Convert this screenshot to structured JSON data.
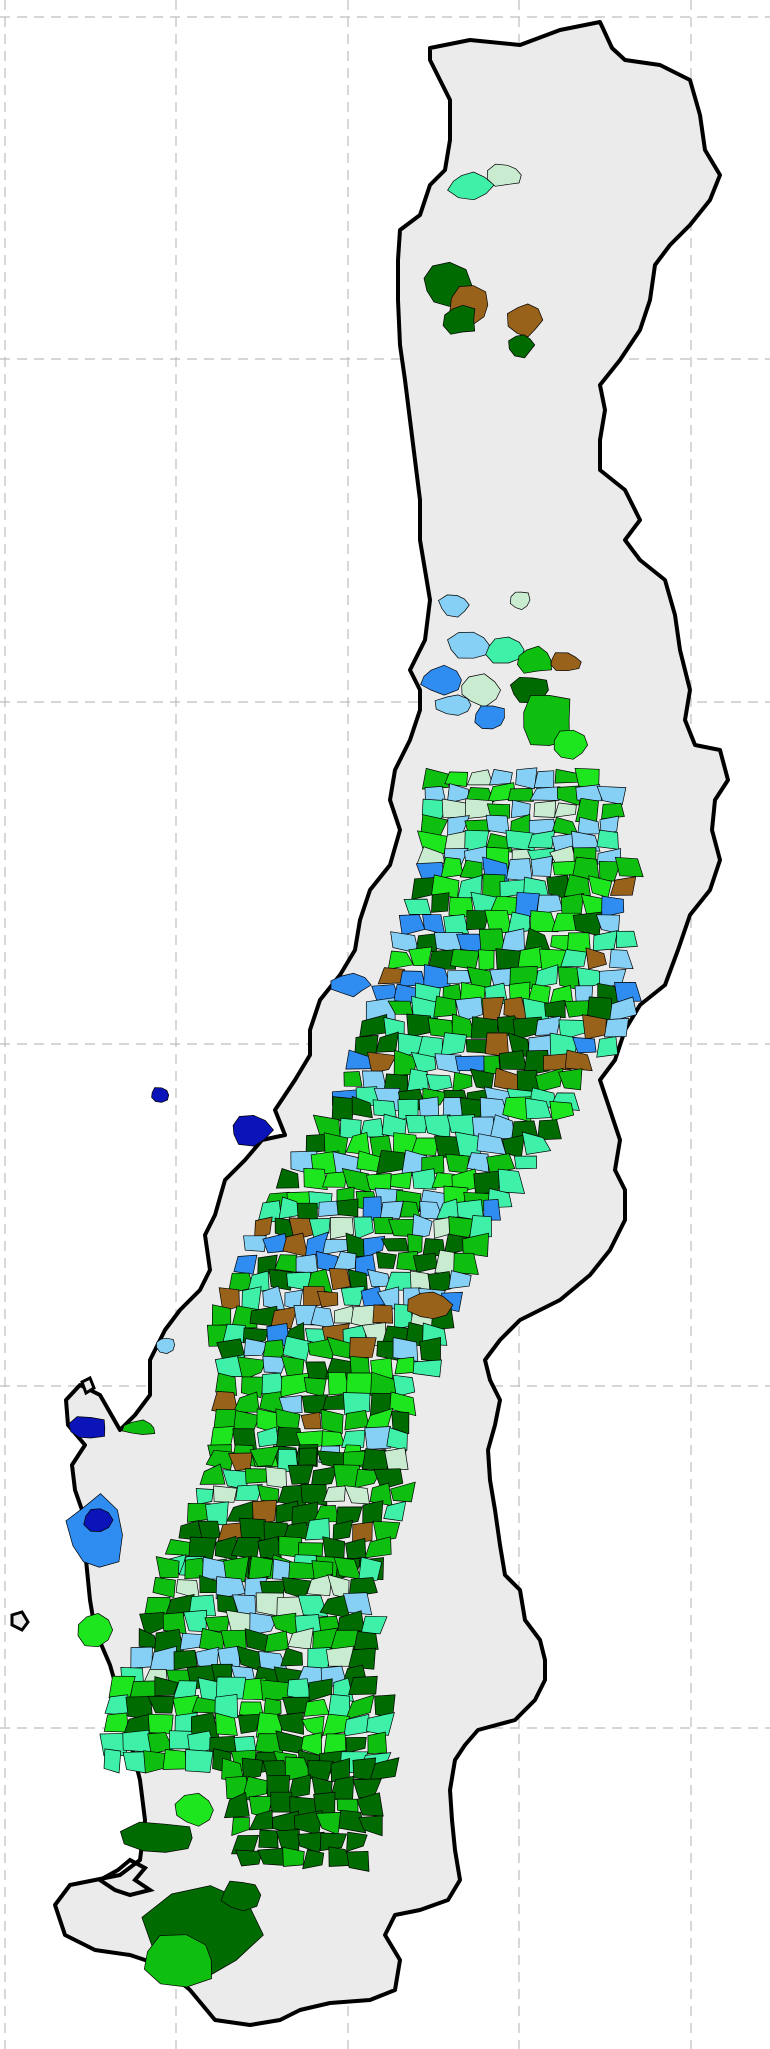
{
  "map": {
    "type": "choropleth",
    "grid": true,
    "colors": {
      "background": "#ffffff",
      "land": "#ebebeb",
      "coast": "#000000",
      "gridline": "#bdbdbd",
      "categories": [
        {
          "key": "dark-green",
          "hex": "#006b00"
        },
        {
          "key": "green",
          "hex": "#0fbf0f"
        },
        {
          "key": "bright-green",
          "hex": "#1ee61e"
        },
        {
          "key": "mint",
          "hex": "#3ff0a8"
        },
        {
          "key": "pale-mint",
          "hex": "#c9ecd0"
        },
        {
          "key": "light-blue",
          "hex": "#86cff5"
        },
        {
          "key": "medium-blue",
          "hex": "#2f8cf0"
        },
        {
          "key": "navy",
          "hex": "#0a14b8"
        },
        {
          "key": "brown",
          "hex": "#99621a"
        }
      ]
    }
  }
}
